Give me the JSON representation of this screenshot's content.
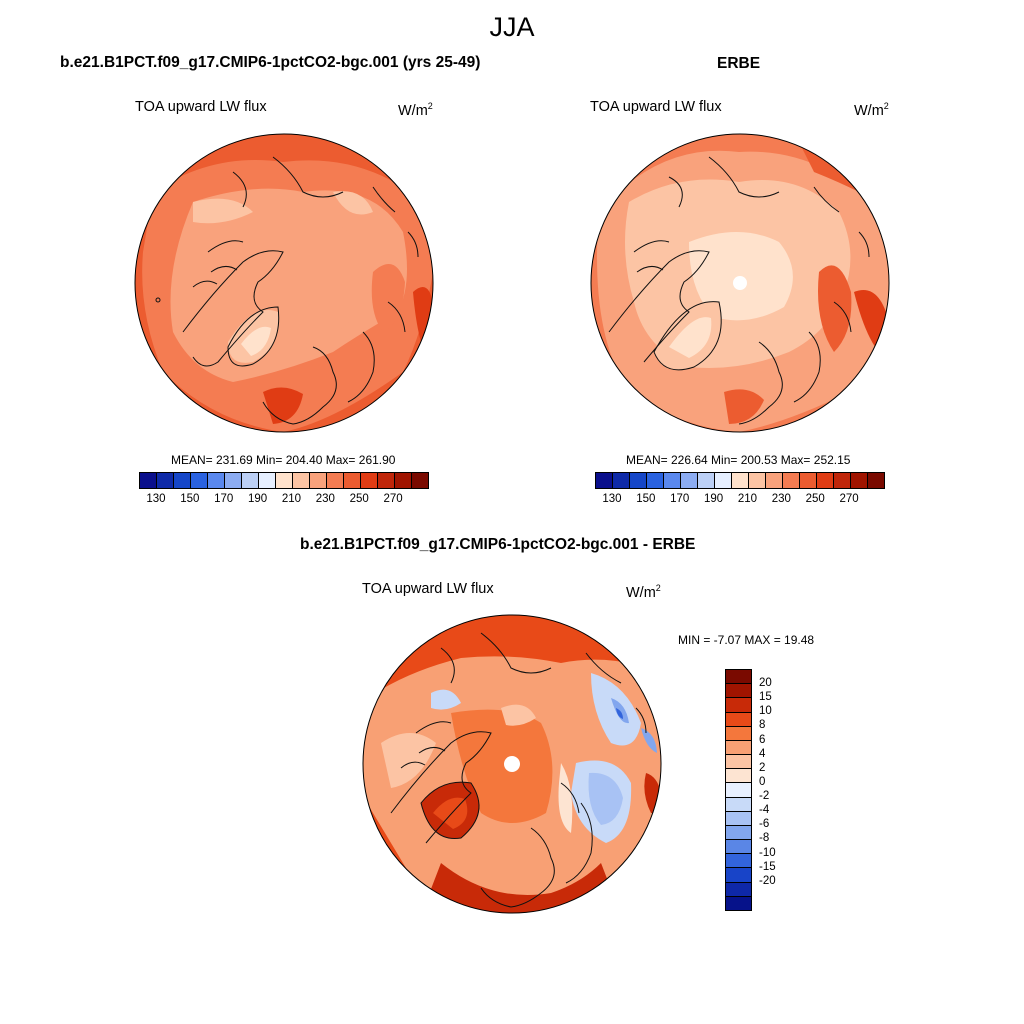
{
  "figure_title": "JJA",
  "panels": [
    {
      "title": "b.e21.B1PCT.f09_g17.CMIP6-1pctCO2-bgc.001 (yrs 25-49)",
      "variable": "TOA upward LW flux",
      "units": "W/m",
      "units_sup": "2",
      "stats": "MEAN= 231.69  Min= 204.40  Max= 261.90",
      "colorbar": {
        "colors": [
          "#0a0f8c",
          "#0e2aa8",
          "#1546c8",
          "#2a62e0",
          "#5a88ee",
          "#8cacf2",
          "#bcd0f6",
          "#e6efff",
          "#ffe2cc",
          "#fcc4a4",
          "#f9a27c",
          "#f47c52",
          "#ec5c30",
          "#e03c14",
          "#c0260a",
          "#a01400",
          "#7a0a00"
        ],
        "ticks": [
          "130",
          "150",
          "170",
          "190",
          "210",
          "230",
          "250",
          "270"
        ]
      }
    },
    {
      "title": "ERBE",
      "variable": "TOA upward LW flux",
      "units": "W/m",
      "units_sup": "2",
      "stats": "MEAN= 226.64  Min= 200.53  Max= 252.15",
      "colorbar": {
        "colors": [
          "#0a0f8c",
          "#0e2aa8",
          "#1546c8",
          "#2a62e0",
          "#5a88ee",
          "#8cacf2",
          "#bcd0f6",
          "#e6efff",
          "#ffe2cc",
          "#fcc4a4",
          "#f9a27c",
          "#f47c52",
          "#ec5c30",
          "#e03c14",
          "#c0260a",
          "#a01400",
          "#7a0a00"
        ],
        "ticks": [
          "130",
          "150",
          "170",
          "190",
          "210",
          "230",
          "250",
          "270"
        ]
      }
    },
    {
      "title": "b.e21.B1PCT.f09_g17.CMIP6-1pctCO2-bgc.001 - ERBE",
      "variable": "TOA upward LW flux",
      "units": "W/m",
      "units_sup": "2",
      "stats": "MIN =  -7.07 MAX =  19.48",
      "colorbar": {
        "colors": [
          "#7a0a00",
          "#a01400",
          "#c82a08",
          "#e84a18",
          "#f4773c",
          "#f8a074",
          "#fcc4a4",
          "#fde4d2",
          "#e8f0ff",
          "#c8daf8",
          "#a8c2f4",
          "#82a6ee",
          "#5a86e6",
          "#3264dc",
          "#1844c8",
          "#0e28a8",
          "#06128a"
        ],
        "ticks": [
          "20",
          "15",
          "10",
          "8",
          "6",
          "4",
          "2",
          "0",
          "-2",
          "-4",
          "-6",
          "-8",
          "-10",
          "-15",
          "-20"
        ]
      }
    }
  ],
  "map_colors": {
    "bg_dark": "#ec5c30",
    "bg_mid": "#f47c52",
    "bg_light": "#f9a27c",
    "bg_pale": "#fcc4a4",
    "bg_paler": "#ffe2cc",
    "blue_light": "#c8daf8",
    "blue_mid": "#82a6ee",
    "blue_dark": "#3264dc",
    "deep_red": "#c82a08"
  }
}
